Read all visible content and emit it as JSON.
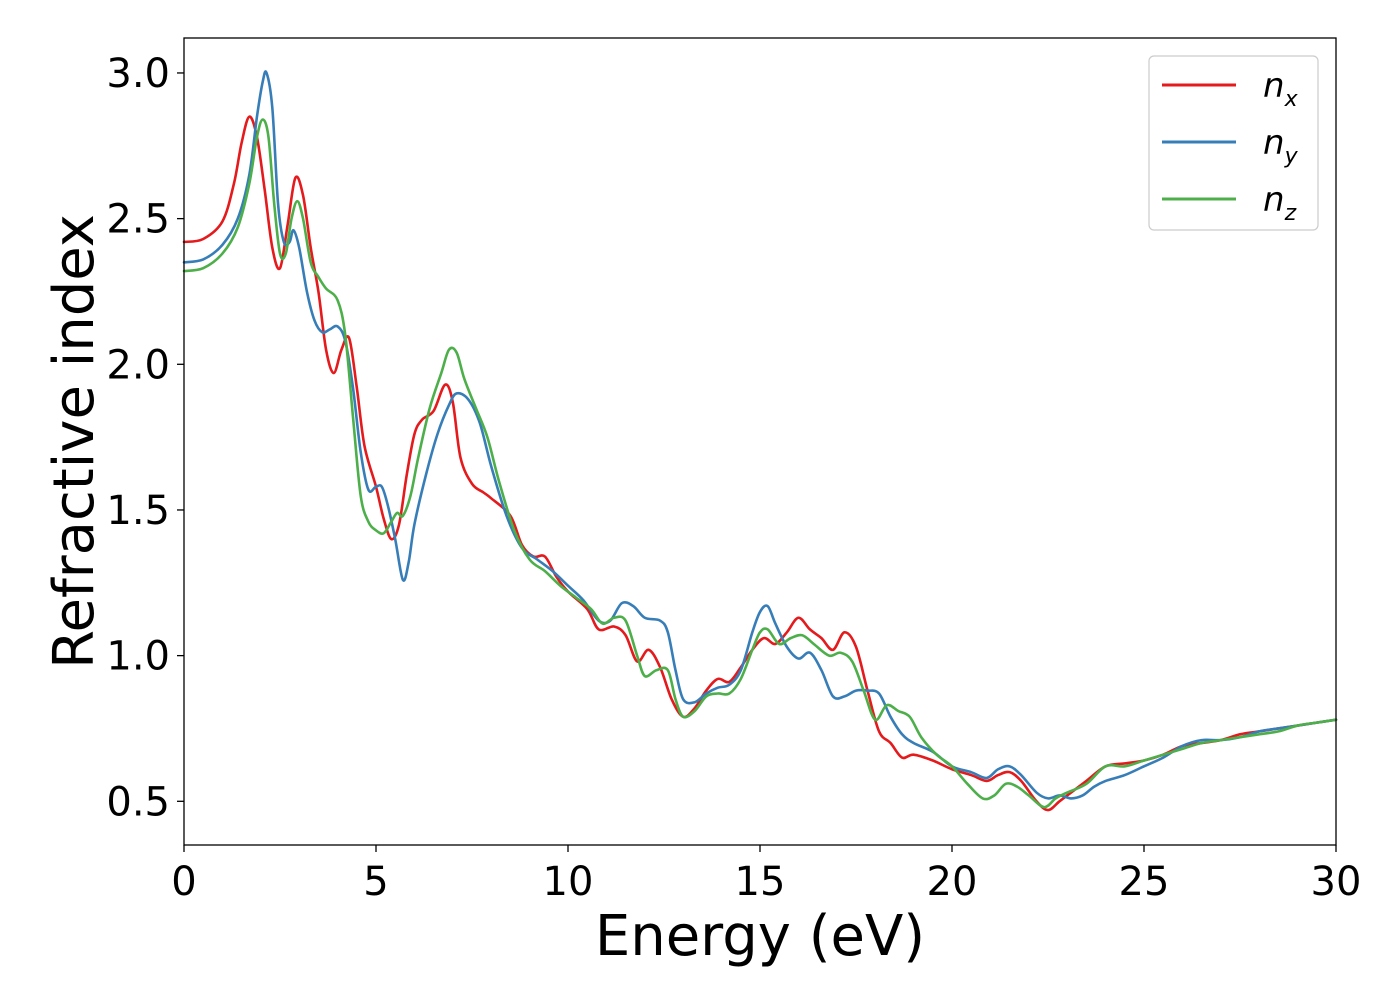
{
  "chart_data": {
    "type": "line",
    "title": "",
    "xlabel": "Energy (eV)",
    "ylabel": "Refractive index",
    "xlim": [
      0,
      30
    ],
    "ylim": [
      0.35,
      3.12
    ],
    "xticks": [
      0,
      5,
      10,
      15,
      20,
      25,
      30
    ],
    "xtick_labels": [
      "0",
      "5",
      "10",
      "15",
      "20",
      "25",
      "30"
    ],
    "yticks": [
      0.5,
      1.0,
      1.5,
      2.0,
      2.5,
      3.0
    ],
    "ytick_labels": [
      "0.5",
      "1.0",
      "1.5",
      "2.0",
      "2.5",
      "3.0"
    ],
    "grid": false,
    "legend_position": "top-right",
    "series": [
      {
        "name": "n",
        "subscript": "x",
        "color": "#e41a1c",
        "points": [
          [
            0,
            2.42
          ],
          [
            0.5,
            2.43
          ],
          [
            1.0,
            2.49
          ],
          [
            1.3,
            2.62
          ],
          [
            1.5,
            2.76
          ],
          [
            1.7,
            2.85
          ],
          [
            1.9,
            2.78
          ],
          [
            2.1,
            2.6
          ],
          [
            2.3,
            2.4
          ],
          [
            2.5,
            2.33
          ],
          [
            2.7,
            2.48
          ],
          [
            2.9,
            2.64
          ],
          [
            3.1,
            2.58
          ],
          [
            3.3,
            2.4
          ],
          [
            3.5,
            2.25
          ],
          [
            3.7,
            2.05
          ],
          [
            3.9,
            1.97
          ],
          [
            4.1,
            2.05
          ],
          [
            4.3,
            2.09
          ],
          [
            4.5,
            1.92
          ],
          [
            4.7,
            1.72
          ],
          [
            5.0,
            1.58
          ],
          [
            5.2,
            1.47
          ],
          [
            5.4,
            1.4
          ],
          [
            5.6,
            1.45
          ],
          [
            5.8,
            1.62
          ],
          [
            6.0,
            1.76
          ],
          [
            6.2,
            1.81
          ],
          [
            6.5,
            1.84
          ],
          [
            6.8,
            1.93
          ],
          [
            7.0,
            1.87
          ],
          [
            7.2,
            1.68
          ],
          [
            7.5,
            1.59
          ],
          [
            7.8,
            1.56
          ],
          [
            8.0,
            1.54
          ],
          [
            8.5,
            1.48
          ],
          [
            8.8,
            1.38
          ],
          [
            9.1,
            1.34
          ],
          [
            9.4,
            1.34
          ],
          [
            9.7,
            1.27
          ],
          [
            10.0,
            1.22
          ],
          [
            10.5,
            1.16
          ],
          [
            10.8,
            1.09
          ],
          [
            11.2,
            1.1
          ],
          [
            11.5,
            1.07
          ],
          [
            11.8,
            0.98
          ],
          [
            12.1,
            1.02
          ],
          [
            12.4,
            0.96
          ],
          [
            12.7,
            0.85
          ],
          [
            13.0,
            0.79
          ],
          [
            13.3,
            0.82
          ],
          [
            13.6,
            0.88
          ],
          [
            13.9,
            0.92
          ],
          [
            14.2,
            0.91
          ],
          [
            14.5,
            0.96
          ],
          [
            14.8,
            1.02
          ],
          [
            15.1,
            1.06
          ],
          [
            15.4,
            1.04
          ],
          [
            15.7,
            1.08
          ],
          [
            16.0,
            1.13
          ],
          [
            16.3,
            1.09
          ],
          [
            16.6,
            1.06
          ],
          [
            16.9,
            1.02
          ],
          [
            17.2,
            1.08
          ],
          [
            17.5,
            1.03
          ],
          [
            17.8,
            0.88
          ],
          [
            18.1,
            0.74
          ],
          [
            18.4,
            0.7
          ],
          [
            18.7,
            0.65
          ],
          [
            19.0,
            0.66
          ],
          [
            19.5,
            0.64
          ],
          [
            20.0,
            0.61
          ],
          [
            20.5,
            0.59
          ],
          [
            20.9,
            0.57
          ],
          [
            21.2,
            0.59
          ],
          [
            21.5,
            0.6
          ],
          [
            21.8,
            0.57
          ],
          [
            22.2,
            0.5
          ],
          [
            22.5,
            0.47
          ],
          [
            22.8,
            0.5
          ],
          [
            23.1,
            0.53
          ],
          [
            23.5,
            0.57
          ],
          [
            24.0,
            0.62
          ],
          [
            24.5,
            0.63
          ],
          [
            25.0,
            0.64
          ],
          [
            25.5,
            0.66
          ],
          [
            26.0,
            0.69
          ],
          [
            26.5,
            0.7
          ],
          [
            27.0,
            0.71
          ],
          [
            27.5,
            0.73
          ],
          [
            28.0,
            0.74
          ],
          [
            28.5,
            0.75
          ],
          [
            29.0,
            0.76
          ],
          [
            29.5,
            0.77
          ],
          [
            30.0,
            0.78
          ]
        ]
      },
      {
        "name": "n",
        "subscript": "y",
        "color": "#377eb8",
        "points": [
          [
            0,
            2.35
          ],
          [
            0.5,
            2.36
          ],
          [
            1.0,
            2.41
          ],
          [
            1.4,
            2.5
          ],
          [
            1.7,
            2.65
          ],
          [
            1.9,
            2.85
          ],
          [
            2.05,
            2.97
          ],
          [
            2.15,
            3.0
          ],
          [
            2.3,
            2.88
          ],
          [
            2.45,
            2.55
          ],
          [
            2.6,
            2.42
          ],
          [
            2.75,
            2.42
          ],
          [
            2.85,
            2.46
          ],
          [
            3.0,
            2.4
          ],
          [
            3.2,
            2.25
          ],
          [
            3.4,
            2.15
          ],
          [
            3.6,
            2.11
          ],
          [
            3.8,
            2.12
          ],
          [
            4.0,
            2.13
          ],
          [
            4.2,
            2.08
          ],
          [
            4.4,
            1.92
          ],
          [
            4.6,
            1.7
          ],
          [
            4.8,
            1.57
          ],
          [
            5.0,
            1.58
          ],
          [
            5.15,
            1.58
          ],
          [
            5.3,
            1.52
          ],
          [
            5.5,
            1.4
          ],
          [
            5.7,
            1.26
          ],
          [
            5.85,
            1.32
          ],
          [
            6.0,
            1.45
          ],
          [
            6.3,
            1.62
          ],
          [
            6.6,
            1.76
          ],
          [
            6.9,
            1.86
          ],
          [
            7.1,
            1.9
          ],
          [
            7.4,
            1.88
          ],
          [
            7.7,
            1.8
          ],
          [
            8.0,
            1.65
          ],
          [
            8.4,
            1.48
          ],
          [
            8.8,
            1.37
          ],
          [
            9.2,
            1.33
          ],
          [
            9.6,
            1.29
          ],
          [
            10.0,
            1.24
          ],
          [
            10.4,
            1.19
          ],
          [
            10.8,
            1.12
          ],
          [
            11.1,
            1.12
          ],
          [
            11.4,
            1.18
          ],
          [
            11.7,
            1.17
          ],
          [
            12.0,
            1.13
          ],
          [
            12.4,
            1.12
          ],
          [
            12.6,
            1.08
          ],
          [
            12.8,
            0.95
          ],
          [
            13.0,
            0.85
          ],
          [
            13.3,
            0.84
          ],
          [
            13.6,
            0.87
          ],
          [
            13.9,
            0.89
          ],
          [
            14.2,
            0.9
          ],
          [
            14.5,
            0.95
          ],
          [
            14.8,
            1.08
          ],
          [
            15.0,
            1.15
          ],
          [
            15.2,
            1.17
          ],
          [
            15.4,
            1.11
          ],
          [
            15.7,
            1.03
          ],
          [
            16.0,
            0.99
          ],
          [
            16.3,
            1.01
          ],
          [
            16.6,
            0.95
          ],
          [
            16.9,
            0.86
          ],
          [
            17.2,
            0.86
          ],
          [
            17.5,
            0.88
          ],
          [
            17.8,
            0.88
          ],
          [
            18.1,
            0.87
          ],
          [
            18.4,
            0.79
          ],
          [
            18.7,
            0.73
          ],
          [
            19.0,
            0.7
          ],
          [
            19.5,
            0.67
          ],
          [
            20.0,
            0.62
          ],
          [
            20.5,
            0.6
          ],
          [
            20.9,
            0.58
          ],
          [
            21.2,
            0.61
          ],
          [
            21.5,
            0.62
          ],
          [
            21.8,
            0.59
          ],
          [
            22.2,
            0.53
          ],
          [
            22.5,
            0.51
          ],
          [
            22.8,
            0.52
          ],
          [
            23.1,
            0.51
          ],
          [
            23.4,
            0.52
          ],
          [
            23.7,
            0.55
          ],
          [
            24.0,
            0.57
          ],
          [
            24.5,
            0.59
          ],
          [
            25.0,
            0.62
          ],
          [
            25.5,
            0.65
          ],
          [
            26.0,
            0.69
          ],
          [
            26.5,
            0.71
          ],
          [
            27.0,
            0.71
          ],
          [
            27.5,
            0.72
          ],
          [
            28.0,
            0.74
          ],
          [
            28.5,
            0.75
          ],
          [
            29.0,
            0.76
          ],
          [
            29.5,
            0.77
          ],
          [
            30.0,
            0.78
          ]
        ]
      },
      {
        "name": "n",
        "subscript": "z",
        "color": "#4daf4a",
        "points": [
          [
            0,
            2.32
          ],
          [
            0.5,
            2.33
          ],
          [
            1.0,
            2.38
          ],
          [
            1.4,
            2.47
          ],
          [
            1.7,
            2.62
          ],
          [
            1.9,
            2.78
          ],
          [
            2.05,
            2.84
          ],
          [
            2.2,
            2.78
          ],
          [
            2.35,
            2.55
          ],
          [
            2.5,
            2.38
          ],
          [
            2.65,
            2.38
          ],
          [
            2.8,
            2.5
          ],
          [
            2.95,
            2.56
          ],
          [
            3.1,
            2.5
          ],
          [
            3.3,
            2.35
          ],
          [
            3.5,
            2.3
          ],
          [
            3.7,
            2.26
          ],
          [
            4.0,
            2.22
          ],
          [
            4.2,
            2.1
          ],
          [
            4.4,
            1.82
          ],
          [
            4.6,
            1.55
          ],
          [
            4.8,
            1.46
          ],
          [
            5.0,
            1.43
          ],
          [
            5.2,
            1.42
          ],
          [
            5.4,
            1.46
          ],
          [
            5.55,
            1.49
          ],
          [
            5.7,
            1.48
          ],
          [
            5.9,
            1.55
          ],
          [
            6.1,
            1.68
          ],
          [
            6.4,
            1.85
          ],
          [
            6.7,
            1.97
          ],
          [
            6.9,
            2.05
          ],
          [
            7.1,
            2.04
          ],
          [
            7.3,
            1.95
          ],
          [
            7.6,
            1.85
          ],
          [
            7.9,
            1.75
          ],
          [
            8.2,
            1.6
          ],
          [
            8.6,
            1.43
          ],
          [
            9.0,
            1.33
          ],
          [
            9.4,
            1.29
          ],
          [
            9.8,
            1.24
          ],
          [
            10.2,
            1.2
          ],
          [
            10.6,
            1.16
          ],
          [
            10.9,
            1.11
          ],
          [
            11.2,
            1.13
          ],
          [
            11.5,
            1.12
          ],
          [
            11.8,
            1.0
          ],
          [
            12.0,
            0.93
          ],
          [
            12.3,
            0.95
          ],
          [
            12.6,
            0.95
          ],
          [
            12.8,
            0.85
          ],
          [
            13.0,
            0.79
          ],
          [
            13.3,
            0.81
          ],
          [
            13.6,
            0.86
          ],
          [
            13.9,
            0.87
          ],
          [
            14.2,
            0.87
          ],
          [
            14.5,
            0.92
          ],
          [
            14.8,
            1.02
          ],
          [
            15.0,
            1.08
          ],
          [
            15.2,
            1.09
          ],
          [
            15.5,
            1.04
          ],
          [
            15.8,
            1.06
          ],
          [
            16.1,
            1.07
          ],
          [
            16.4,
            1.04
          ],
          [
            16.8,
            1.0
          ],
          [
            17.1,
            1.01
          ],
          [
            17.4,
            0.98
          ],
          [
            17.7,
            0.88
          ],
          [
            18.0,
            0.78
          ],
          [
            18.3,
            0.83
          ],
          [
            18.6,
            0.81
          ],
          [
            18.9,
            0.79
          ],
          [
            19.2,
            0.72
          ],
          [
            19.6,
            0.66
          ],
          [
            20.0,
            0.62
          ],
          [
            20.4,
            0.56
          ],
          [
            20.8,
            0.51
          ],
          [
            21.1,
            0.52
          ],
          [
            21.4,
            0.56
          ],
          [
            21.7,
            0.55
          ],
          [
            22.0,
            0.52
          ],
          [
            22.4,
            0.48
          ],
          [
            22.7,
            0.51
          ],
          [
            23.0,
            0.53
          ],
          [
            23.5,
            0.56
          ],
          [
            24.0,
            0.62
          ],
          [
            24.5,
            0.62
          ],
          [
            25.0,
            0.64
          ],
          [
            25.5,
            0.66
          ],
          [
            26.0,
            0.68
          ],
          [
            26.5,
            0.7
          ],
          [
            27.0,
            0.71
          ],
          [
            27.5,
            0.72
          ],
          [
            28.0,
            0.73
          ],
          [
            28.5,
            0.74
          ],
          [
            29.0,
            0.76
          ],
          [
            29.5,
            0.77
          ],
          [
            30.0,
            0.78
          ]
        ]
      }
    ]
  }
}
